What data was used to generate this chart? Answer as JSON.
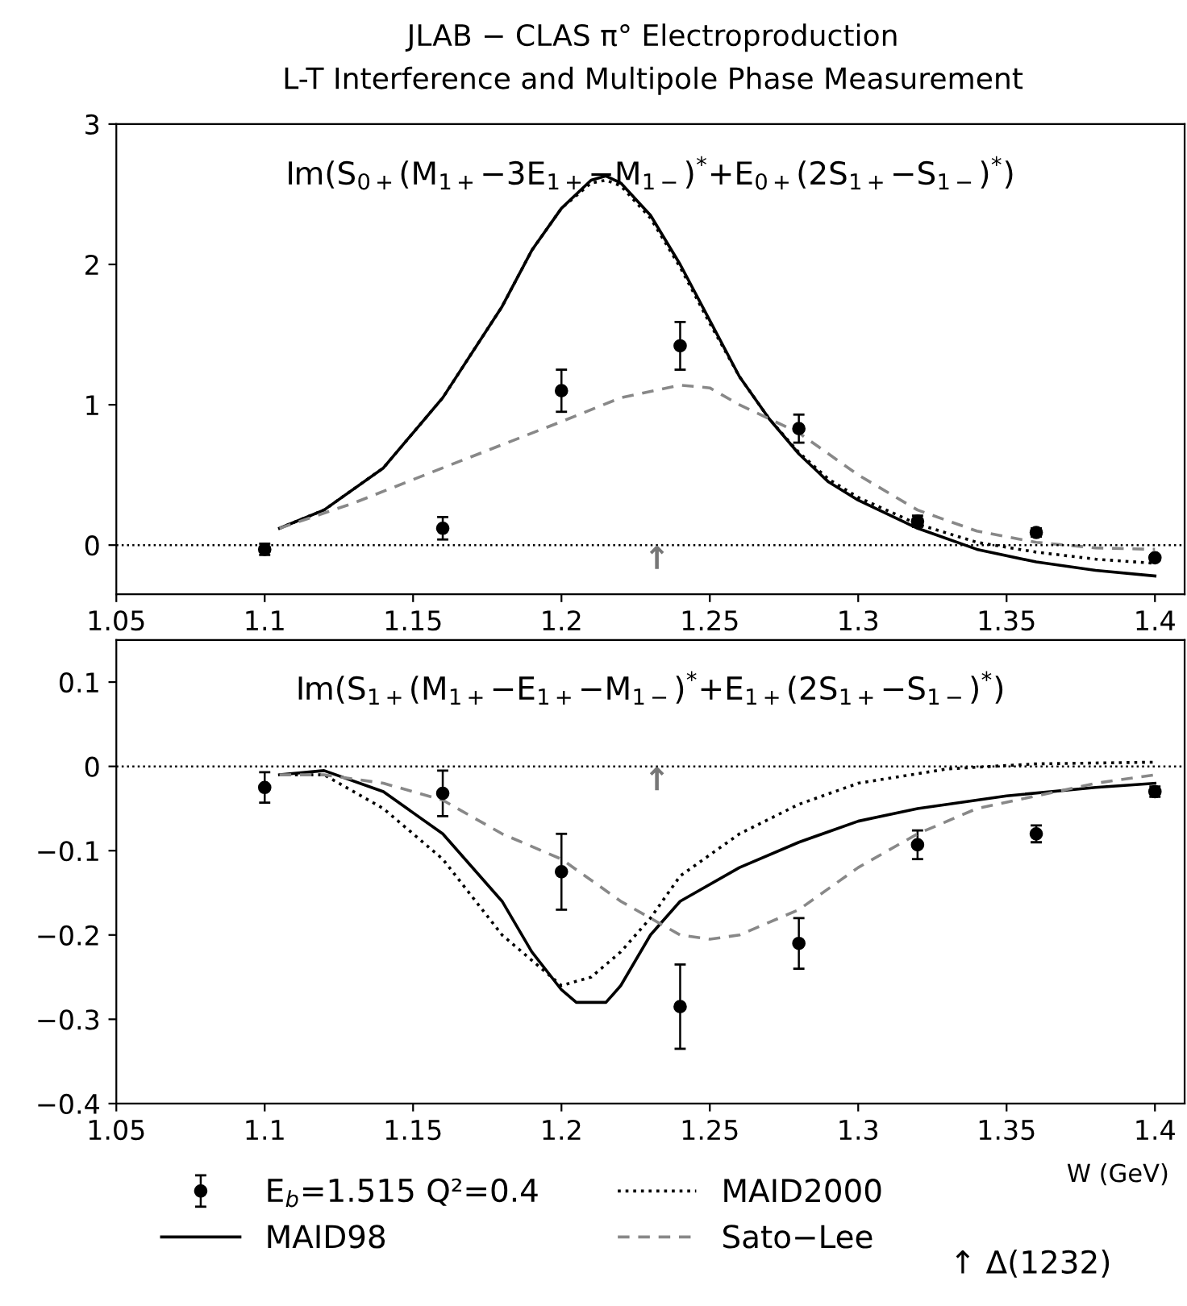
{
  "chart_data": [
    {
      "type": "line",
      "title": "JLAB − CLAS π° Electroproduction",
      "subtitle": "L-T Interference and Multipole Phase Measurement",
      "annotations": [
        "Im(S$_{0+}$(M$_{1+}$−3E$_{1+}$−M$_{1−}$)$^{*}$+E$_{0+}$(2S$_{1+}$−S$_{1−}$)$^{*}$)",
        "↑"
      ],
      "xlim": [
        1.05,
        1.41
      ],
      "xticks": [
        1.05,
        1.1,
        1.15,
        1.2,
        1.25,
        1.3,
        1.35,
        1.4
      ],
      "ylim": [
        -0.35,
        3
      ],
      "yticks": [
        0,
        1,
        2,
        3
      ],
      "ref_lines": [
        {
          "axis": "y",
          "value": 0,
          "color": "#000000",
          "line_style": "dotted"
        }
      ],
      "grid": false,
      "legend": false,
      "series": [
        {
          "type": "scatter",
          "marker": "circle",
          "color": "#000000",
          "x": [
            1.1,
            1.16,
            1.2,
            1.24,
            1.28,
            1.32,
            1.36,
            1.4
          ],
          "values": [
            -0.03,
            0.12,
            1.1,
            1.42,
            0.83,
            0.17,
            0.09,
            -0.09
          ],
          "errors": [
            0.04,
            0.08,
            0.15,
            0.17,
            0.1,
            0.04,
            0.03,
            0.02
          ]
        },
        {
          "line_style": "solid",
          "color": "#000000",
          "x": [
            1.105,
            1.12,
            1.14,
            1.16,
            1.18,
            1.19,
            1.2,
            1.21,
            1.215,
            1.22,
            1.23,
            1.24,
            1.25,
            1.26,
            1.27,
            1.28,
            1.29,
            1.3,
            1.32,
            1.34,
            1.36,
            1.38,
            1.4
          ],
          "values": [
            0.12,
            0.25,
            0.55,
            1.05,
            1.7,
            2.1,
            2.4,
            2.6,
            2.63,
            2.58,
            2.35,
            2.0,
            1.6,
            1.2,
            0.9,
            0.65,
            0.45,
            0.32,
            0.12,
            -0.03,
            -0.12,
            -0.18,
            -0.22
          ]
        },
        {
          "line_style": "dotted",
          "color": "#000000",
          "x": [
            1.105,
            1.12,
            1.14,
            1.16,
            1.18,
            1.19,
            1.2,
            1.21,
            1.215,
            1.22,
            1.23,
            1.24,
            1.25,
            1.26,
            1.27,
            1.28,
            1.29,
            1.3,
            1.32,
            1.34,
            1.36,
            1.38,
            1.4
          ],
          "values": [
            0.12,
            0.25,
            0.55,
            1.05,
            1.7,
            2.1,
            2.4,
            2.58,
            2.6,
            2.56,
            2.33,
            1.98,
            1.58,
            1.2,
            0.9,
            0.66,
            0.47,
            0.34,
            0.15,
            0.02,
            -0.05,
            -0.1,
            -0.13
          ]
        },
        {
          "line_style": "dashed",
          "color": "#888888",
          "x": [
            1.105,
            1.13,
            1.16,
            1.2,
            1.22,
            1.24,
            1.25,
            1.26,
            1.28,
            1.3,
            1.32,
            1.34,
            1.36,
            1.38,
            1.4
          ],
          "values": [
            0.12,
            0.3,
            0.55,
            0.88,
            1.05,
            1.14,
            1.12,
            1.0,
            0.8,
            0.5,
            0.25,
            0.1,
            0.02,
            -0.02,
            -0.03
          ]
        }
      ]
    },
    {
      "type": "line",
      "xlabel": "W (GeV)",
      "annotations": [
        "Im(S$_{1+}$(M$_{1+}$−E$_{1+}$−M$_{1−}$)$^{*}$+E$_{1+}$(2S$_{1+}$−S$_{1−}$)$^{*}$)",
        "↑",
        "↑ Δ(1232)"
      ],
      "xlim": [
        1.05,
        1.41
      ],
      "xticks": [
        1.05,
        1.1,
        1.15,
        1.2,
        1.25,
        1.3,
        1.35,
        1.4
      ],
      "ylim": [
        -0.4,
        0.15
      ],
      "yticks": [
        0.1,
        0,
        {
          "value": -0.1,
          "label": "−0.1"
        },
        {
          "value": -0.2,
          "label": "−0.2"
        },
        {
          "value": -0.3,
          "label": "−0.3"
        },
        {
          "value": -0.4,
          "label": "−0.4"
        }
      ],
      "ref_lines": [
        {
          "axis": "y",
          "value": 0,
          "color": "#000000",
          "line_style": "dotted"
        }
      ],
      "grid": false,
      "legend": "bottom",
      "series": [
        {
          "name": "E$_{b}$=1.515 Q²=0.4",
          "type": "scatter",
          "marker": "circle",
          "color": "#000000",
          "x": [
            1.1,
            1.16,
            1.2,
            1.24,
            1.28,
            1.32,
            1.36,
            1.4
          ],
          "values": [
            -0.025,
            -0.032,
            -0.125,
            -0.285,
            -0.21,
            -0.093,
            -0.08,
            -0.03
          ],
          "errors": [
            0.018,
            0.027,
            0.045,
            0.05,
            0.03,
            0.017,
            0.01,
            0.006
          ]
        },
        {
          "name": "MAID98",
          "line_style": "solid",
          "color": "#000000",
          "x": [
            1.105,
            1.12,
            1.14,
            1.16,
            1.18,
            1.19,
            1.2,
            1.205,
            1.215,
            1.22,
            1.23,
            1.24,
            1.26,
            1.28,
            1.3,
            1.32,
            1.35,
            1.38,
            1.4
          ],
          "values": [
            -0.01,
            -0.005,
            -0.03,
            -0.08,
            -0.16,
            -0.22,
            -0.265,
            -0.28,
            -0.28,
            -0.26,
            -0.2,
            -0.16,
            -0.12,
            -0.09,
            -0.065,
            -0.05,
            -0.035,
            -0.025,
            -0.02
          ]
        },
        {
          "name": "MAID2000",
          "line_style": "dotted",
          "color": "#000000",
          "x": [
            1.105,
            1.12,
            1.14,
            1.16,
            1.18,
            1.2,
            1.21,
            1.22,
            1.23,
            1.24,
            1.26,
            1.28,
            1.3,
            1.33,
            1.36,
            1.4
          ],
          "values": [
            -0.01,
            -0.01,
            -0.05,
            -0.11,
            -0.2,
            -0.26,
            -0.25,
            -0.22,
            -0.18,
            -0.13,
            -0.08,
            -0.045,
            -0.02,
            -0.003,
            0.003,
            0.005
          ]
        },
        {
          "name": "Sato−Lee",
          "line_style": "dashed",
          "color": "#888888",
          "x": [
            1.105,
            1.12,
            1.14,
            1.16,
            1.18,
            1.2,
            1.22,
            1.24,
            1.25,
            1.26,
            1.28,
            1.3,
            1.32,
            1.34,
            1.36,
            1.38,
            1.4
          ],
          "values": [
            -0.01,
            -0.01,
            -0.02,
            -0.04,
            -0.08,
            -0.11,
            -0.16,
            -0.2,
            -0.205,
            -0.2,
            -0.17,
            -0.12,
            -0.08,
            -0.05,
            -0.035,
            -0.02,
            -0.01
          ]
        }
      ]
    }
  ]
}
